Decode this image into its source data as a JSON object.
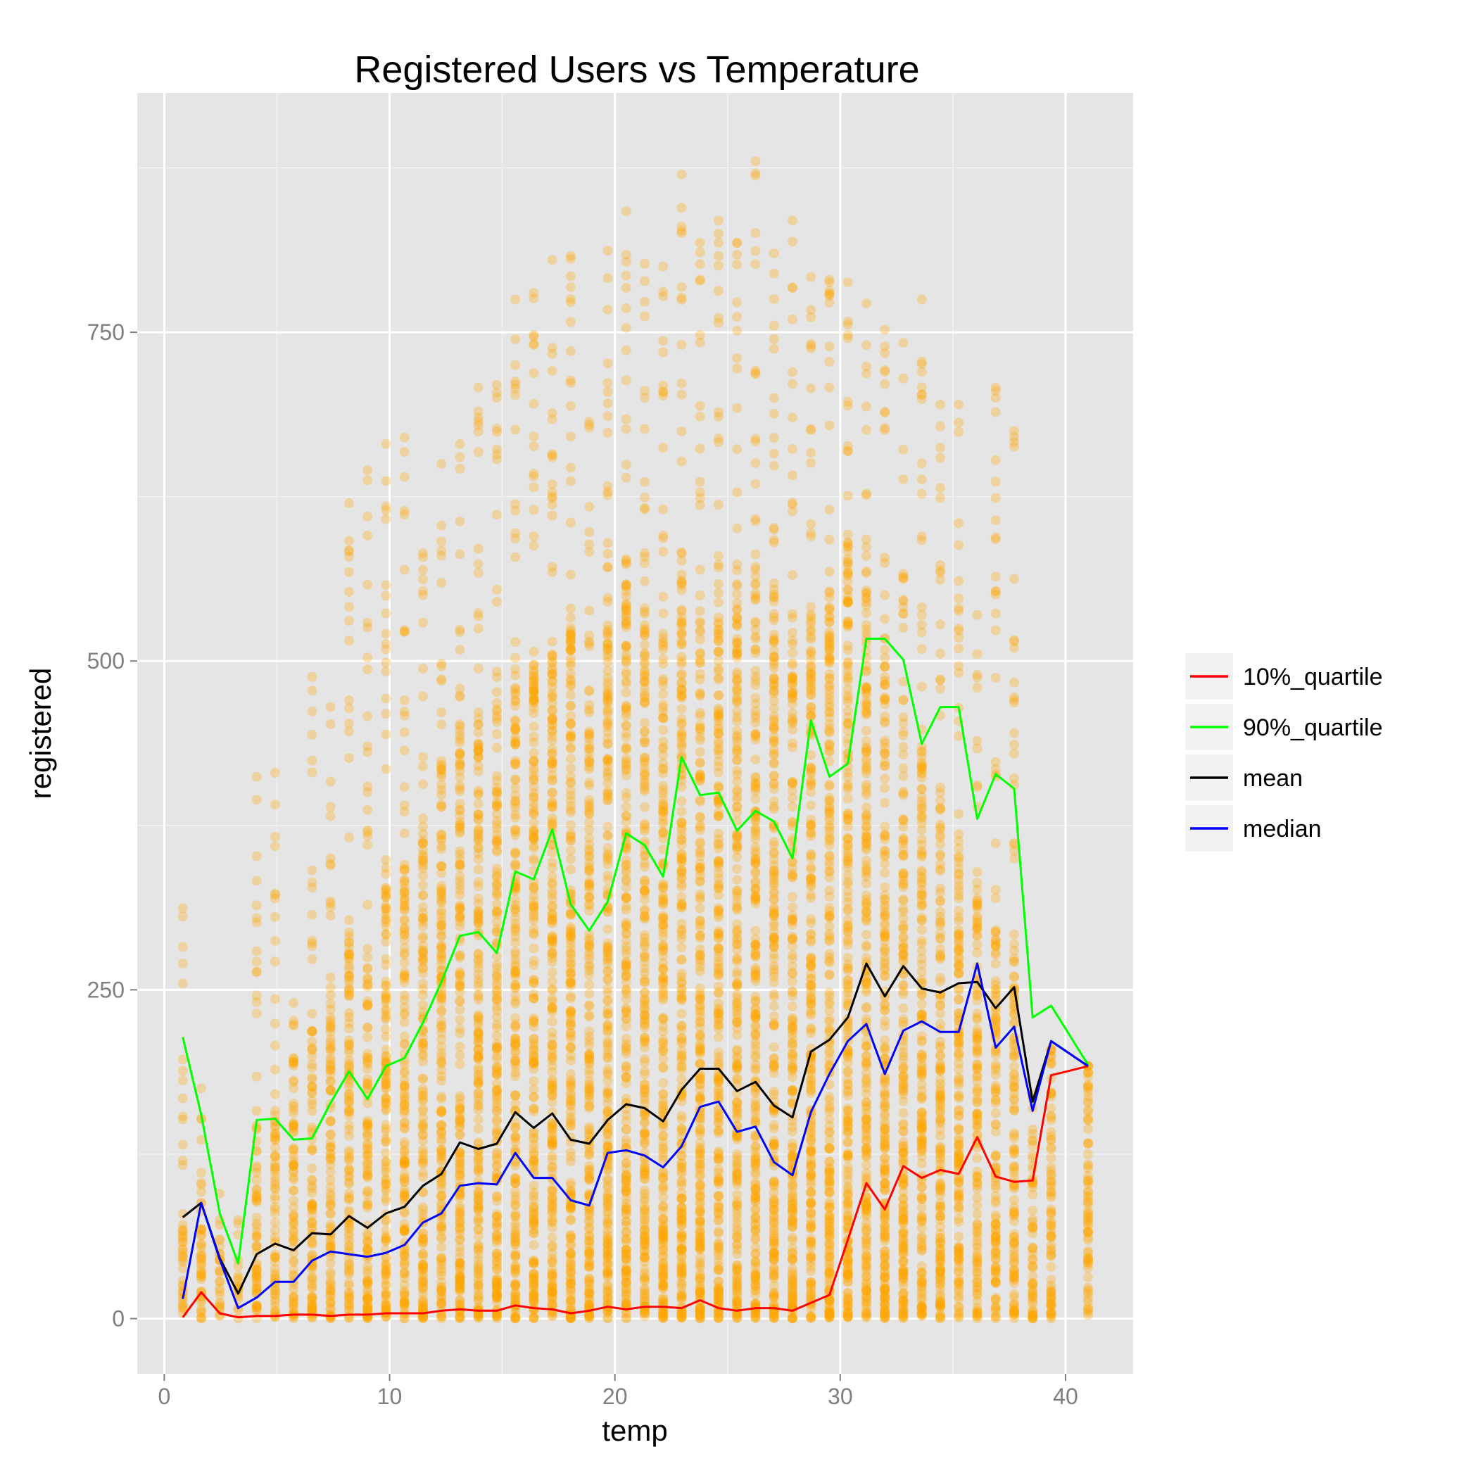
{
  "chart_data": {
    "type": "scatter",
    "title": "Registered Users vs Temperature",
    "xlabel": "temp",
    "ylabel": "registered",
    "xlim": [
      -1.2,
      43.0
    ],
    "ylim": [
      -42,
      932
    ],
    "x_ticks": [
      0,
      10,
      20,
      30,
      40
    ],
    "y_ticks": [
      0,
      250,
      500,
      750
    ],
    "grid": true,
    "legend_position": "right",
    "point_color": "#FFA500",
    "point_alpha": 0.3,
    "x_levels": [
      0.82,
      1.64,
      2.46,
      3.28,
      4.1,
      4.92,
      5.74,
      6.56,
      7.38,
      8.2,
      9.02,
      9.84,
      10.66,
      11.48,
      12.3,
      13.12,
      13.94,
      14.76,
      15.58,
      16.4,
      17.22,
      18.04,
      18.86,
      19.68,
      20.5,
      21.32,
      22.14,
      22.96,
      23.78,
      24.6,
      25.42,
      26.24,
      27.06,
      27.88,
      28.7,
      29.52,
      30.34,
      31.16,
      31.98,
      32.8,
      33.62,
      34.44,
      35.26,
      36.08,
      36.9,
      37.72,
      38.54,
      39.36,
      41.0
    ],
    "points_max": [
      312,
      175,
      95,
      75,
      412,
      415,
      240,
      488,
      465,
      620,
      645,
      665,
      670,
      582,
      650,
      665,
      708,
      710,
      775,
      780,
      805,
      808,
      682,
      812,
      842,
      802,
      800,
      870,
      818,
      835,
      818,
      880,
      810,
      835,
      792,
      790,
      788,
      772,
      752,
      742,
      775,
      695,
      695,
      535,
      708,
      675,
      170,
      205,
      192
    ],
    "points_core_top": [
      80,
      110,
      60,
      40,
      150,
      160,
      200,
      230,
      260,
      290,
      300,
      340,
      360,
      390,
      420,
      450,
      470,
      470,
      480,
      500,
      520,
      540,
      480,
      550,
      560,
      540,
      520,
      560,
      540,
      560,
      560,
      560,
      560,
      500,
      540,
      560,
      600,
      560,
      540,
      460,
      440,
      400,
      380,
      320,
      300,
      280,
      150,
      200,
      192
    ],
    "series": [
      {
        "name": "10%_quartile",
        "color": "#FF0000",
        "values": [
          1,
          20,
          4,
          1,
          2,
          2,
          3,
          3,
          2,
          3,
          3,
          4,
          4,
          4,
          6,
          7,
          6,
          6,
          10,
          8,
          7,
          4,
          6,
          9,
          7,
          9,
          9,
          8,
          14,
          8,
          6,
          8,
          8,
          6,
          12,
          18,
          60,
          103,
          83,
          116,
          107,
          113,
          110,
          138,
          108,
          104,
          105,
          185,
          192
        ]
      },
      {
        "name": "90%_quartile",
        "color": "#00FF00",
        "values": [
          214,
          155,
          80,
          42,
          151,
          152,
          136,
          137,
          164,
          188,
          167,
          192,
          198,
          225,
          256,
          291,
          294,
          278,
          340,
          334,
          372,
          315,
          295,
          317,
          369,
          360,
          336,
          427,
          398,
          400,
          371,
          386,
          378,
          350,
          455,
          412,
          422,
          517,
          517,
          501,
          437,
          465,
          465,
          380,
          414,
          403,
          229,
          238,
          193
        ]
      },
      {
        "name": "mean",
        "color": "#000000",
        "values": [
          77,
          88,
          46,
          19,
          49,
          57,
          52,
          65,
          64,
          78,
          69,
          80,
          85,
          101,
          110,
          134,
          129,
          133,
          157,
          145,
          156,
          136,
          133,
          151,
          163,
          160,
          150,
          174,
          190,
          190,
          173,
          180,
          162,
          153,
          203,
          212,
          229,
          270,
          245,
          268,
          251,
          248,
          255,
          256,
          236,
          252,
          165,
          211,
          192
        ]
      },
      {
        "name": "median",
        "color": "#0000FF",
        "values": [
          15,
          88,
          45,
          8,
          16,
          28,
          28,
          44,
          51,
          49,
          47,
          50,
          56,
          73,
          80,
          101,
          103,
          102,
          126,
          107,
          107,
          90,
          86,
          126,
          128,
          124,
          115,
          131,
          161,
          165,
          142,
          146,
          119,
          109,
          157,
          186,
          211,
          224,
          186,
          219,
          226,
          218,
          218,
          270,
          206,
          222,
          158,
          211,
          192
        ]
      }
    ]
  }
}
